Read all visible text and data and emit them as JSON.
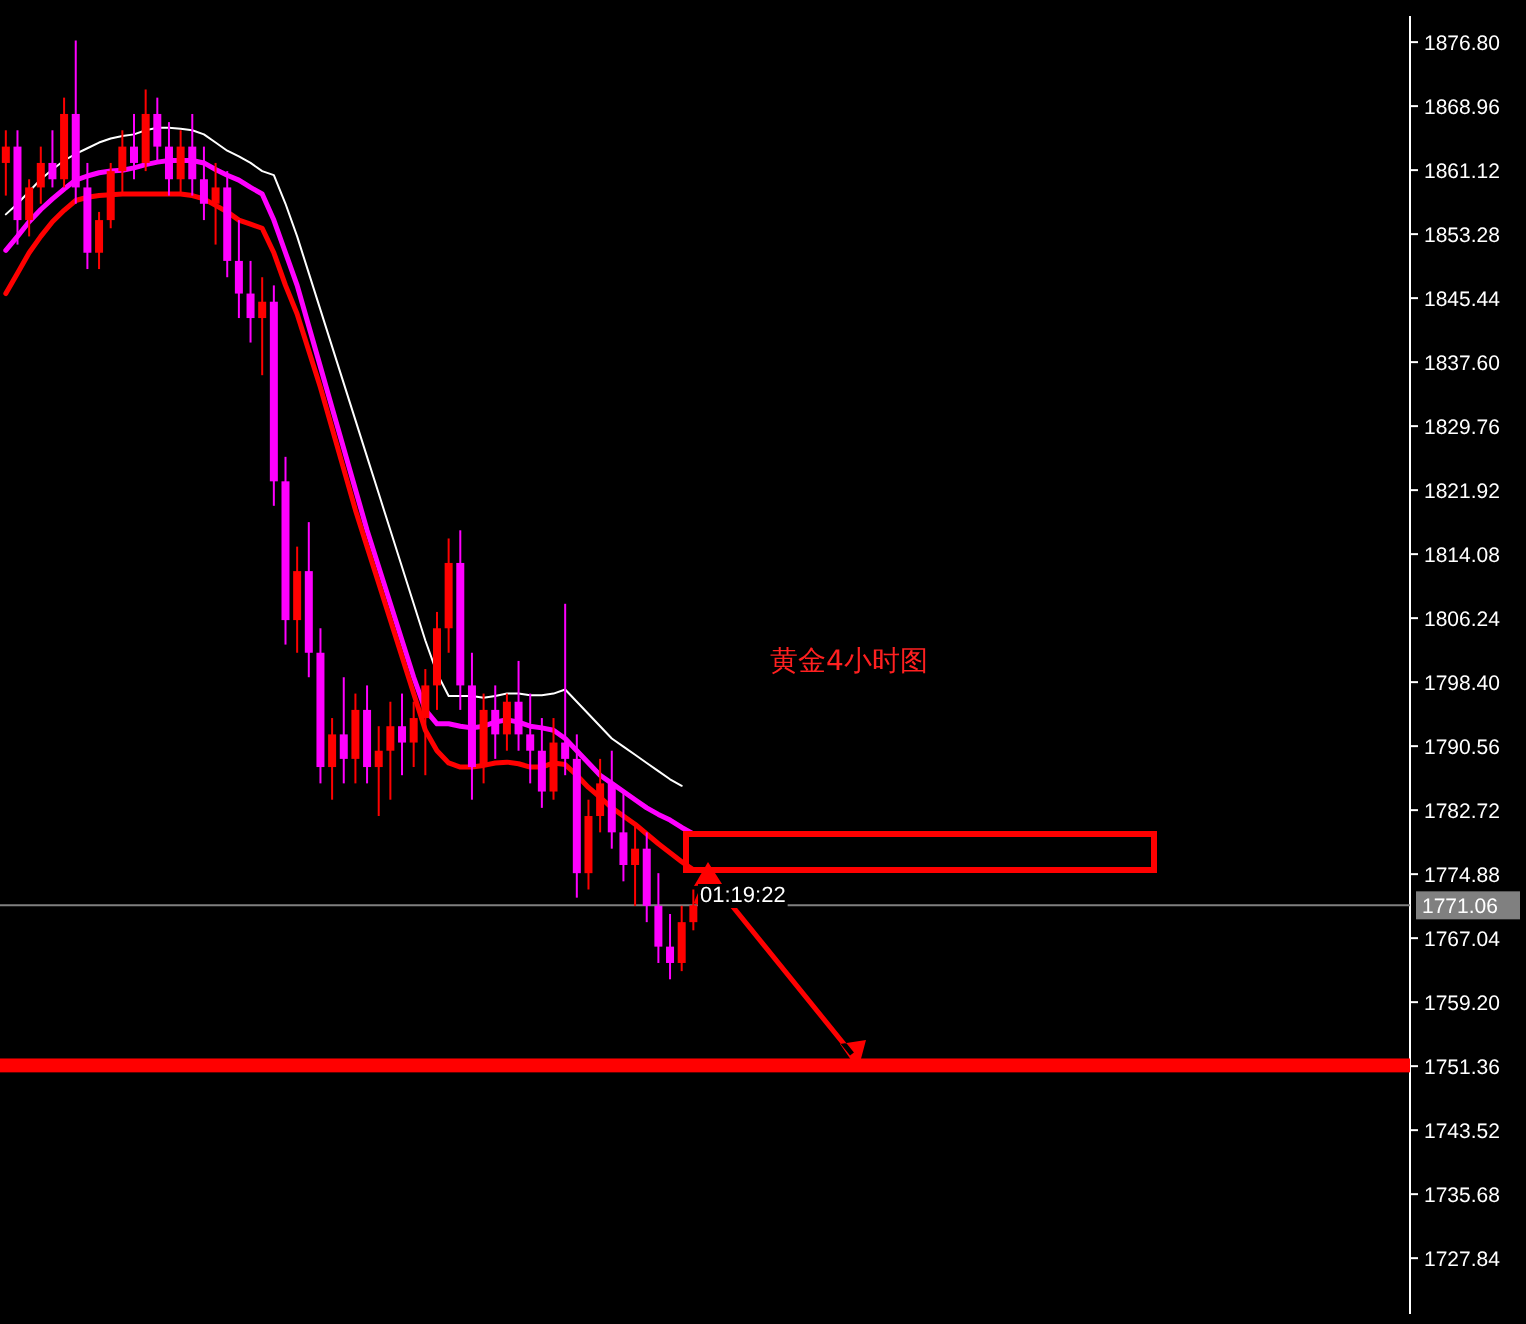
{
  "chart_data": {
    "type": "candlestick",
    "categories": [
      null,
      null,
      null,
      null,
      null,
      null,
      null,
      null,
      null,
      null,
      null,
      null,
      null,
      null,
      null,
      null,
      null,
      null,
      null,
      null,
      null,
      null,
      null,
      null,
      null,
      null,
      null,
      null,
      null,
      null,
      null,
      null,
      null,
      null,
      null,
      null,
      null,
      null,
      null,
      null,
      null,
      null,
      null,
      null,
      null,
      null,
      null,
      null,
      null,
      null,
      null,
      null,
      null,
      null,
      null,
      null,
      null,
      null,
      null,
      null,
      null,
      null,
      null,
      null,
      null,
      null,
      null,
      null,
      null,
      null,
      null,
      null,
      null,
      null,
      null,
      null,
      null,
      null,
      null,
      null,
      null,
      null,
      null,
      null,
      null,
      null,
      null,
      null,
      null,
      null,
      null,
      null,
      null,
      null,
      null,
      null,
      null,
      null,
      null,
      null,
      null,
      null,
      null,
      null,
      null,
      null,
      null,
      null,
      null,
      null,
      null,
      null,
      null,
      null,
      null,
      null,
      null,
      null,
      null,
      null,
      null
    ],
    "ohlc": [
      [
        1862,
        1866,
        1858,
        1864
      ],
      [
        1864,
        1866,
        1852,
        1855
      ],
      [
        1855,
        1860,
        1853,
        1859
      ],
      [
        1859,
        1864,
        1857,
        1862
      ],
      [
        1862,
        1866,
        1859,
        1860
      ],
      [
        1860,
        1870,
        1859,
        1868
      ],
      [
        1868,
        1877,
        1857,
        1859
      ],
      [
        1859,
        1862,
        1849,
        1851
      ],
      [
        1851,
        1856,
        1849,
        1855
      ],
      [
        1855,
        1862,
        1854,
        1861
      ],
      [
        1861,
        1866,
        1858,
        1864
      ],
      [
        1864,
        1868,
        1860,
        1862
      ],
      [
        1862,
        1871,
        1861,
        1868
      ],
      [
        1868,
        1870,
        1862,
        1864
      ],
      [
        1864,
        1867,
        1858,
        1860
      ],
      [
        1860,
        1866,
        1858,
        1864
      ],
      [
        1864,
        1868,
        1858,
        1860
      ],
      [
        1860,
        1864,
        1855,
        1857
      ],
      [
        1857,
        1862,
        1852,
        1859
      ],
      [
        1859,
        1861,
        1848,
        1850
      ],
      [
        1850,
        1855,
        1843,
        1846
      ],
      [
        1846,
        1850,
        1840,
        1843
      ],
      [
        1843,
        1848,
        1836,
        1845
      ],
      [
        1845,
        1847,
        1820,
        1823
      ],
      [
        1823,
        1826,
        1803,
        1806
      ],
      [
        1806,
        1815,
        1802,
        1812
      ],
      [
        1812,
        1818,
        1799,
        1802
      ],
      [
        1802,
        1805,
        1786,
        1788
      ],
      [
        1788,
        1794,
        1784,
        1792
      ],
      [
        1792,
        1799,
        1786,
        1789
      ],
      [
        1789,
        1797,
        1786,
        1795
      ],
      [
        1795,
        1798,
        1786,
        1788
      ],
      [
        1788,
        1793,
        1782,
        1790
      ],
      [
        1790,
        1796,
        1784,
        1793
      ],
      [
        1793,
        1797,
        1787,
        1791
      ],
      [
        1791,
        1796,
        1788,
        1794
      ],
      [
        1794,
        1800,
        1787,
        1798
      ],
      [
        1798,
        1807,
        1795,
        1805
      ],
      [
        1805,
        1816,
        1802,
        1813
      ],
      [
        1813,
        1817,
        1795,
        1798
      ],
      [
        1798,
        1802,
        1784,
        1788
      ],
      [
        1788,
        1797,
        1786,
        1795
      ],
      [
        1795,
        1798,
        1789,
        1792
      ],
      [
        1792,
        1797,
        1790,
        1796
      ],
      [
        1796,
        1801,
        1790,
        1792
      ],
      [
        1792,
        1797,
        1786,
        1790
      ],
      [
        1790,
        1794,
        1783,
        1785
      ],
      [
        1785,
        1794,
        1784,
        1791
      ],
      [
        1791,
        1808,
        1787,
        1789
      ],
      [
        1789,
        1792,
        1772,
        1775
      ],
      [
        1775,
        1784,
        1773,
        1782
      ],
      [
        1782,
        1789,
        1780,
        1786
      ],
      [
        1786,
        1790,
        1778,
        1780
      ],
      [
        1780,
        1785,
        1774,
        1776
      ],
      [
        1776,
        1781,
        1771,
        1778
      ],
      [
        1778,
        1780,
        1769,
        1771
      ],
      [
        1771,
        1775,
        1764,
        1766
      ],
      [
        1766,
        1770,
        1762,
        1764
      ],
      [
        1764,
        1771,
        1763,
        1769
      ],
      [
        1769,
        1773,
        1768,
        1771.06
      ],
      null,
      null,
      null,
      null,
      null,
      null,
      null,
      null,
      null,
      null,
      null,
      null,
      null,
      null,
      null,
      null,
      null,
      null,
      null,
      null,
      null,
      null,
      null,
      null,
      null,
      null,
      null,
      null,
      null,
      null,
      null,
      null,
      null,
      null,
      null,
      null,
      null,
      null,
      null,
      null,
      null,
      null,
      null,
      null,
      null,
      null,
      null,
      null,
      null,
      null,
      null,
      null,
      null,
      null,
      null,
      null,
      null,
      null,
      null,
      null,
      null
    ],
    "colors": [
      "#ff0000",
      "#ff00ff",
      "#ff0000",
      "#ff0000",
      "#ff00ff",
      "#ff0000",
      "#ff00ff",
      "#ff00ff",
      "#ff0000",
      "#ff0000",
      "#ff0000",
      "#ff00ff",
      "#ff0000",
      "#ff00ff",
      "#ff00ff",
      "#ff0000",
      "#ff00ff",
      "#ff00ff",
      "#ff0000",
      "#ff00ff",
      "#ff00ff",
      "#ff00ff",
      "#ff0000",
      "#ff00ff",
      "#ff00ff",
      "#ff0000",
      "#ff00ff",
      "#ff00ff",
      "#ff0000",
      "#ff00ff",
      "#ff0000",
      "#ff00ff",
      "#ff0000",
      "#ff0000",
      "#ff00ff",
      "#ff0000",
      "#ff0000",
      "#ff0000",
      "#ff0000",
      "#ff00ff",
      "#ff00ff",
      "#ff0000",
      "#ff00ff",
      "#ff0000",
      "#ff00ff",
      "#ff00ff",
      "#ff00ff",
      "#ff0000",
      "#ff00ff",
      "#ff00ff",
      "#ff0000",
      "#ff0000",
      "#ff00ff",
      "#ff00ff",
      "#ff0000",
      "#ff00ff",
      "#ff00ff",
      "#ff00ff",
      "#ff0000",
      "#ff0000",
      null,
      null,
      null,
      null,
      null,
      null,
      null,
      null,
      null,
      null,
      null,
      null,
      null,
      null,
      null,
      null,
      null,
      null,
      null,
      null,
      null,
      null,
      null,
      null,
      null,
      null,
      null,
      null,
      null,
      null,
      null,
      null,
      null,
      null,
      null,
      null,
      null,
      null,
      null,
      null,
      null,
      null,
      null,
      null,
      null,
      null,
      null,
      null,
      null,
      null,
      null,
      null,
      null,
      null,
      null,
      null,
      null,
      null,
      null,
      null,
      null
    ],
    "series": [
      {
        "type": "line",
        "color": "#ffffff",
        "values": [
          1855.7,
          1857.0,
          1858.5,
          1860.0,
          1861.2,
          1862.3,
          1863.1,
          1863.8,
          1864.5,
          1865.0,
          1865.3,
          1865.5,
          1866.0,
          1866.3,
          1866.3,
          1866.2,
          1866.0,
          1865.5,
          1864.5,
          1863.5,
          1862.8,
          1862.0,
          1861.0,
          1860.5,
          1857.0,
          1853.0,
          1848.5,
          1844.0,
          1839.5,
          1835.0,
          1830.5,
          1826.0,
          1821.5,
          1817.0,
          1812.5,
          1808.0,
          1803.5,
          1799.5,
          1796.7,
          1796.7,
          1796.7,
          1796.5,
          1796.7,
          1797.0,
          1797.0,
          1796.8,
          1796.8,
          1797.0,
          1797.5,
          1796.0,
          1794.5,
          1793.0,
          1791.5,
          1790.5,
          1789.5,
          1788.5,
          1787.5,
          1786.5,
          1785.7,
          null,
          null,
          null,
          null,
          null,
          null,
          null,
          null,
          null,
          null,
          null,
          null,
          null,
          null,
          null,
          null,
          null,
          null,
          null,
          null,
          null,
          null,
          null,
          null,
          null,
          null,
          null,
          null,
          null,
          null,
          null,
          null,
          null,
          null,
          null,
          null,
          null,
          null,
          null,
          null,
          null,
          null,
          null,
          null,
          null,
          null,
          null,
          null,
          null,
          null,
          null,
          null,
          null,
          null,
          null,
          null,
          null,
          null,
          null,
          null,
          null,
          null
        ]
      },
      {
        "type": "line",
        "color": "#ff00ff",
        "values": [
          1851.3,
          1853.0,
          1854.8,
          1856.3,
          1857.6,
          1858.8,
          1859.9,
          1860.4,
          1860.8,
          1861.0,
          1861.1,
          1861.4,
          1861.8,
          1862.1,
          1862.3,
          1862.3,
          1862.3,
          1862.0,
          1861.2,
          1860.5,
          1859.9,
          1859.0,
          1858.2,
          1855.0,
          1851.0,
          1847.0,
          1842.0,
          1837.0,
          1832.0,
          1827.0,
          1822.0,
          1817.0,
          1812.5,
          1808.0,
          1803.5,
          1799.0,
          1795.0,
          1793.3,
          1793.3,
          1793.0,
          1792.8,
          1793.0,
          1793.5,
          1793.8,
          1793.5,
          1793.0,
          1792.8,
          1792.5,
          1791.5,
          1790.0,
          1788.5,
          1787.0,
          1786.0,
          1785.0,
          1784.0,
          1783.0,
          1782.2,
          1781.5,
          1780.6,
          1779.8,
          null,
          null,
          null,
          null,
          null,
          null,
          null,
          null,
          null,
          null,
          null,
          null,
          null,
          null,
          null,
          null,
          null,
          null,
          null,
          null,
          null,
          null,
          null,
          null,
          null,
          null,
          null,
          null,
          null,
          null,
          null,
          null,
          null,
          null,
          null,
          null,
          null,
          null,
          null,
          null,
          null,
          null,
          null,
          null,
          null,
          null,
          null,
          null,
          null,
          null,
          null,
          null,
          null,
          null,
          null,
          null,
          null,
          null,
          null,
          null,
          null
        ]
      },
      {
        "type": "line",
        "color": "#ff0000",
        "values": [
          1846.0,
          1848.5,
          1851.0,
          1853.0,
          1854.8,
          1856.2,
          1857.4,
          1857.8,
          1858.0,
          1858.1,
          1858.2,
          1858.2,
          1858.2,
          1858.2,
          1858.2,
          1858.2,
          1858.0,
          1857.6,
          1856.8,
          1856.0,
          1855.0,
          1854.5,
          1854.0,
          1851.0,
          1847.0,
          1843.5,
          1839.0,
          1834.5,
          1829.5,
          1824.5,
          1819.5,
          1815.0,
          1810.5,
          1806.0,
          1801.5,
          1797.0,
          1792.5,
          1790.0,
          1788.5,
          1788.0,
          1788.0,
          1788.2,
          1788.5,
          1788.6,
          1788.4,
          1788.0,
          1788.0,
          1788.5,
          1788.3,
          1787.0,
          1785.5,
          1784.3,
          1783.0,
          1782.0,
          1781.0,
          1779.8,
          1778.6,
          1777.5,
          1776.4,
          1775.4,
          null,
          null,
          null,
          null,
          null,
          null,
          null,
          null,
          null,
          null,
          null,
          null,
          null,
          null,
          null,
          null,
          null,
          null,
          null,
          null,
          null,
          null,
          null,
          null,
          null,
          null,
          null,
          null,
          null,
          null,
          null,
          null,
          null,
          null,
          null,
          null,
          null,
          null,
          null,
          null,
          null,
          null,
          null,
          null,
          null,
          null,
          null,
          null,
          null,
          null,
          null,
          null,
          null,
          null,
          null,
          null,
          null,
          null,
          null,
          null,
          null
        ]
      }
    ],
    "ylim": [
      1721.0,
      1880.0
    ],
    "yticks": [
      {
        "value": 1876.8,
        "label": "1876.80"
      },
      {
        "value": 1868.96,
        "label": "1868.96"
      },
      {
        "value": 1861.12,
        "label": "1861.12"
      },
      {
        "value": 1853.28,
        "label": "1853.28"
      },
      {
        "value": 1845.44,
        "label": "1845.44"
      },
      {
        "value": 1837.6,
        "label": "1837.60"
      },
      {
        "value": 1829.76,
        "label": "1829.76"
      },
      {
        "value": 1821.92,
        "label": "1821.92"
      },
      {
        "value": 1814.08,
        "label": "1814.08"
      },
      {
        "value": 1806.24,
        "label": "1806.24"
      },
      {
        "value": 1798.4,
        "label": "1798.40"
      },
      {
        "value": 1790.56,
        "label": "1790.56"
      },
      {
        "value": 1782.72,
        "label": "1782.72"
      },
      {
        "value": 1774.88,
        "label": "1774.88"
      },
      {
        "value": 1767.04,
        "label": "1767.04"
      },
      {
        "value": 1759.2,
        "label": "1759.20"
      },
      {
        "value": 1751.36,
        "label": "1751.36"
      },
      {
        "value": 1743.52,
        "label": "1743.52"
      },
      {
        "value": 1735.68,
        "label": "1735.68"
      },
      {
        "value": 1727.84,
        "label": "1727.84"
      }
    ],
    "ref_lines": [
      {
        "axis": "y",
        "value": 1771.06,
        "label": "1771.06",
        "color": "#808080"
      }
    ],
    "bands": [
      {
        "axis": "y",
        "from": 1750.6,
        "to": 1752.3,
        "color": "#ff0000"
      }
    ],
    "annotations": [
      "黄金4小时图",
      "01:19:22"
    ],
    "tick_labels": "y"
  }
}
